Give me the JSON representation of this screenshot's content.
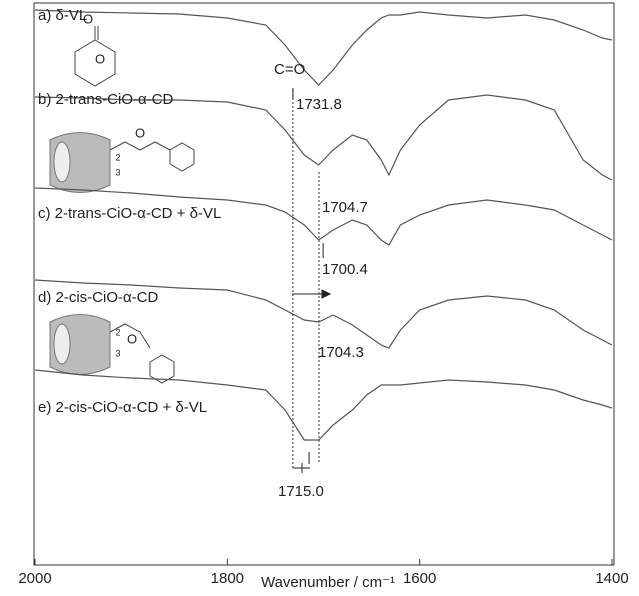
{
  "chart_data": {
    "type": "line",
    "x": [
      2000,
      1950,
      1900,
      1850,
      1800,
      1760,
      1740,
      1720,
      1705,
      1690,
      1670,
      1655,
      1640,
      1632,
      1620,
      1600,
      1570,
      1530,
      1490,
      1460,
      1430,
      1410,
      1400
    ],
    "series": [
      {
        "name": "a) δ-VL",
        "color": "#555555",
        "values": [
          555,
          553,
          552,
          551,
          547,
          540,
          520,
          495,
          480,
          495,
          520,
          535,
          547,
          550,
          550,
          553,
          550,
          547,
          550,
          545,
          535,
          527,
          525
        ]
      },
      {
        "name": "b) 2-trans-CiO-α-CD",
        "color": "#555555",
        "values": [
          468,
          467,
          465,
          465,
          463,
          455,
          435,
          410,
          400,
          415,
          430,
          425,
          405,
          390,
          415,
          440,
          465,
          470,
          465,
          455,
          405,
          390,
          385
        ]
      },
      {
        "name": "c) 2-trans-CiO-α-CD + δ-VL",
        "color": "#555555",
        "values": [
          377,
          375,
          372,
          368,
          365,
          360,
          353,
          340,
          325,
          335,
          345,
          340,
          325,
          320,
          340,
          350,
          360,
          365,
          360,
          355,
          340,
          330,
          325
        ]
      },
      {
        "name": "d) 2-cis-CiO-α-CD",
        "color": "#555555",
        "values": [
          285,
          282,
          280,
          277,
          275,
          265,
          255,
          245,
          243,
          250,
          240,
          230,
          220,
          217,
          235,
          255,
          265,
          269,
          265,
          255,
          235,
          225,
          220
        ]
      },
      {
        "name": "e) 2-cis-CiO-α-CD + δ-VL",
        "color": "#555555",
        "values": [
          195,
          190,
          187,
          185,
          180,
          175,
          155,
          125,
          125,
          140,
          155,
          170,
          180,
          180,
          180,
          182,
          185,
          183,
          180,
          175,
          165,
          160,
          157
        ]
      }
    ],
    "xlim": [
      2000,
      1400
    ],
    "ylim": [
      0,
      560
    ],
    "xticks": [
      2000,
      1800,
      1600,
      1400
    ],
    "xlabel": "Wavenumber / cm⁻¹",
    "annotations": [
      "C=O"
    ],
    "peaks": [
      1731.8,
      1704.7,
      1700.4,
      1704.3,
      {
        "value": 1715,
        "label": "1715.0"
      }
    ],
    "structure_labels": [
      "O",
      "O",
      "O",
      "2",
      "3",
      "O",
      "2",
      "3"
    ]
  }
}
